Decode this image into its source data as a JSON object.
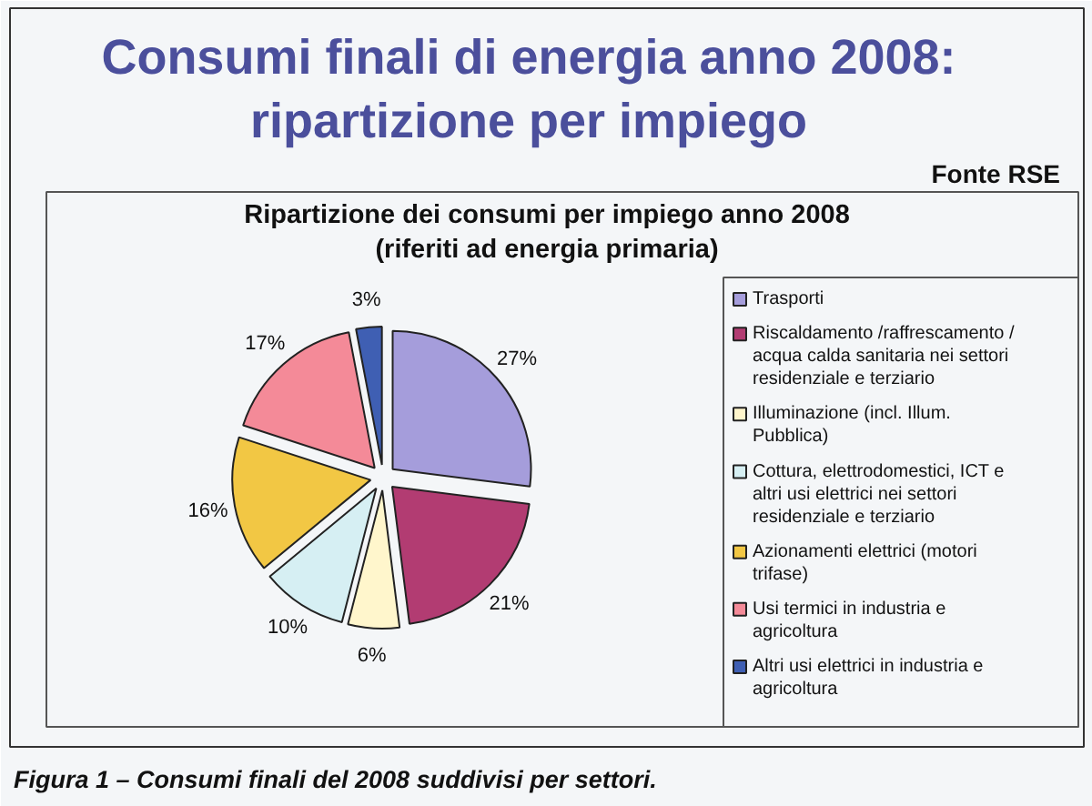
{
  "chart_data": {
    "type": "pie",
    "title": "Consumi finali di energia anno 2008: ripartizione per impiego",
    "subtitle": "Ripartizione dei consumi per impiego anno 2008 (riferiti ad energia primaria)",
    "categories": [
      "Trasporti",
      "Riscaldamento /raffrescamento / acqua calda sanitaria nei settori residenziale e terziario",
      "Illuminazione (incl. Illum. Pubblica)",
      "Cottura, elettrodomestici, ICT e altri usi elettrici nei settori residenziale e terziario",
      "Azionamenti elettrici (motori trifase)",
      "Usi termici in industria e agricoltura",
      "Altri usi elettrici in industria e agricoltura"
    ],
    "values": [
      27,
      21,
      6,
      10,
      16,
      17,
      3
    ],
    "colors": [
      "#a59ddb",
      "#b23c72",
      "#fff6cc",
      "#d6eff3",
      "#f2c744",
      "#f48a98",
      "#3f5fb3"
    ],
    "value_labels": [
      "27%",
      "21%",
      "6%",
      "10%",
      "16%",
      "17%",
      "3%"
    ],
    "legend": "right",
    "annotations": [
      "Fonte RSE",
      "Figura 1 – Consumi finali del 2008 suddivisi per settori."
    ]
  }
}
